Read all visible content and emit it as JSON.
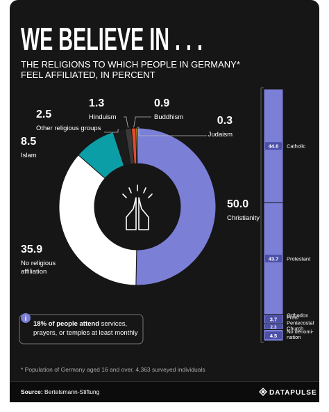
{
  "chart_data": [
    {
      "type": "donut",
      "title": "WE BELIEVE IN . . .",
      "subtitle": "THE RELIGIONS TO WHICH PEOPLE IN GERMANY*\nFEEL AFFILIATED, IN PERCENT",
      "categories": [
        "Christianity",
        "No religious\naffiliation",
        "Islam",
        "Other religious groups",
        "Hinduism",
        "Buddhism",
        "Judaism"
      ],
      "values": [
        50.0,
        35.9,
        8.5,
        2.5,
        1.3,
        0.9,
        0.3
      ],
      "value_labels": [
        "50.0",
        "35.9",
        "8.5",
        "2.5",
        "1.3",
        "0.9",
        "0.3"
      ],
      "colors": [
        "#7b7fd6",
        "#ffffff",
        "#0b9ea6",
        "#1c1c1c",
        "#3a3a3a",
        "#e8482f",
        "#f4c21b"
      ]
    },
    {
      "type": "stacked-bar",
      "categories": [
        "Catholic",
        "Protestant",
        "Orthodox",
        "Free/\nPentecostal\nChurch",
        "No denomi-\nnation"
      ],
      "values": [
        44.6,
        43.7,
        3.7,
        2.3,
        4.5
      ],
      "color": "#7b7fd6"
    }
  ],
  "info": {
    "bold": "18% of people attend",
    "text": " services, prayers, or temples at least monthly",
    "icon": "i"
  },
  "footnote": "* Population of Germany aged 16 and over, 4,363 surveyed individuals",
  "source_label": "Source:",
  "source": "Bertelsmann-Stiftung",
  "logo": "DATAPULSE"
}
